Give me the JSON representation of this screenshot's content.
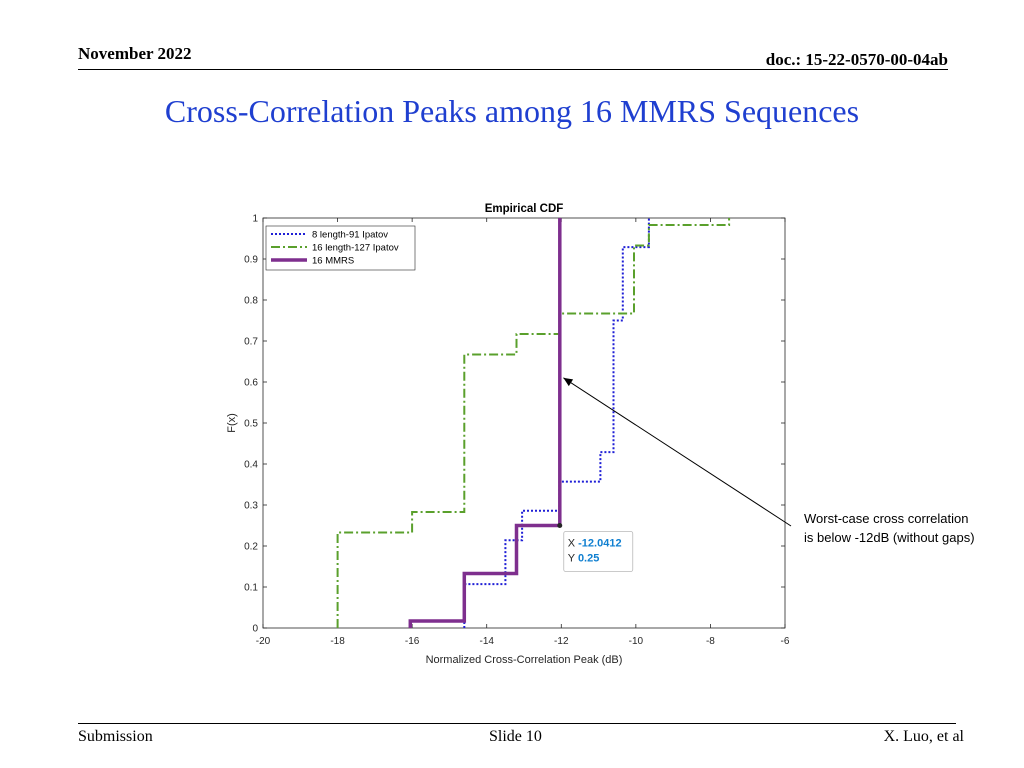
{
  "header": {
    "date": "November 2022",
    "doc": "doc.: 15-22-0570-00-04ab"
  },
  "title": "Cross-Correlation Peaks among 16 MMRS Sequences",
  "footer": {
    "left": "Submission",
    "center": "Slide 10",
    "right": "X. Luo, et al"
  },
  "callout": {
    "line1": "Worst-case cross correlation",
    "line2": "is below -12dB (without gaps)"
  },
  "chart_data": {
    "type": "line",
    "title": "Empirical CDF",
    "xlabel": "Normalized Cross-Correlation Peak (dB)",
    "ylabel": "F(x)",
    "xlim": [
      -20,
      -6
    ],
    "ylim": [
      0,
      1
    ],
    "xticks": [
      -20,
      -18,
      -16,
      -14,
      -12,
      -10,
      -8,
      -6
    ],
    "yticks": [
      0,
      0.1,
      0.2,
      0.3,
      0.4,
      0.5,
      0.6,
      0.7,
      0.8,
      0.9,
      1
    ],
    "legend_position": "top-left",
    "series": [
      {
        "name": "8 length-91 Ipatov",
        "color": "#1f1fd6",
        "style": "dotted",
        "x": [
          -14.6,
          -14.6,
          -13.5,
          -13.5,
          -13.05,
          -13.05,
          -12.05,
          -12.05,
          -10.95,
          -10.95,
          -10.6,
          -10.6,
          -10.35,
          -10.35,
          -10.05,
          -10.05,
          -9.65,
          -9.65
        ],
        "y": [
          0,
          0.107,
          0.107,
          0.214,
          0.214,
          0.286,
          0.286,
          0.357,
          0.357,
          0.429,
          0.429,
          0.75,
          0.75,
          0.929,
          0.929,
          0.929,
          0.929,
          1.0
        ]
      },
      {
        "name": "16 length-127 Ipatov",
        "color": "#5aa02c",
        "style": "dashdot",
        "x": [
          -18.0,
          -18.0,
          -16.0,
          -16.0,
          -14.6,
          -14.6,
          -13.2,
          -13.2,
          -12.05,
          -12.05,
          -10.05,
          -10.05,
          -9.65,
          -9.65,
          -7.5,
          -7.5
        ],
        "y": [
          0,
          0.233,
          0.233,
          0.283,
          0.283,
          0.667,
          0.667,
          0.717,
          0.717,
          0.767,
          0.767,
          0.933,
          0.933,
          0.983,
          0.983,
          1.0
        ]
      },
      {
        "name": "16 MMRS",
        "color": "#7e2f8e",
        "style": "solid",
        "x": [
          -16.05,
          -16.05,
          -14.6,
          -14.6,
          -13.2,
          -13.2,
          -12.04,
          -12.04
        ],
        "y": [
          0,
          0.017,
          0.017,
          0.133,
          0.133,
          0.25,
          0.25,
          1.0
        ]
      }
    ],
    "datatip": {
      "x_label": "X",
      "y_label": "Y",
      "x": "-12.0412",
      "y": "0.25",
      "x_value": -12.0412,
      "y_value": 0.25
    },
    "annotation_arrow": {
      "target_x": -12.05,
      "target_y": 0.615
    }
  }
}
